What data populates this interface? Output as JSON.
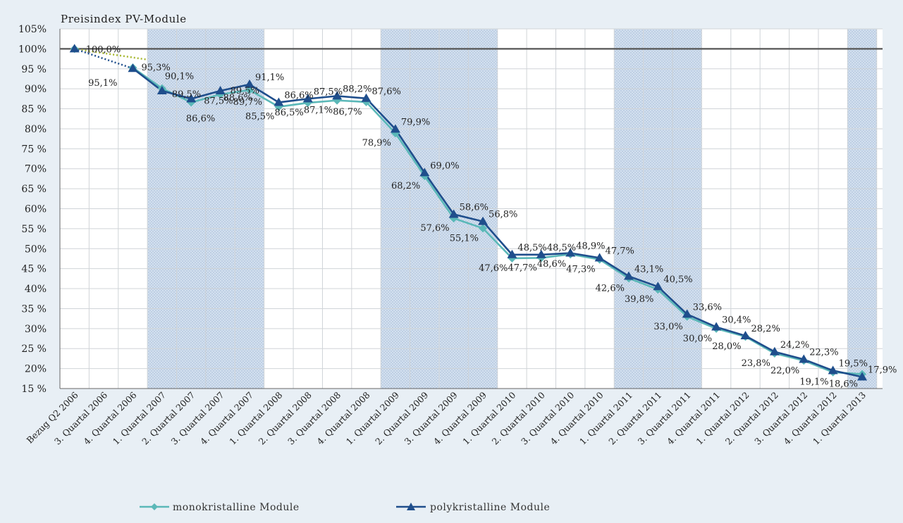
{
  "chart_data": {
    "type": "line",
    "title": "Preisindex PV-Module",
    "categories": [
      "Bezug Q2 2006",
      "3. Quartal 2006",
      "4. Quartal 2006",
      "1. Quartal 2007",
      "2. Quartal 2007",
      "3. Quartal 2007",
      "4. Quartal 2007",
      "1. Quartal 2008",
      "2. Quartal 2008",
      "3. Quartal 2008",
      "4. Quartal 2008",
      "1. Quartal 2009",
      "2. Quartal 2009",
      "3. Quartal 2009",
      "4. Quartal 2009",
      "1. Quartal 2010",
      "2. Quartal 2010",
      "3. Quartal 2010",
      "4. Quartal 2010",
      "1. Quartal 2011",
      "2. Quartal 2011",
      "3. Quartal 2011",
      "4. Quartal 2011",
      "1. Quartal 2012",
      "2. Quartal 2012",
      "3. Quartal 2012",
      "4. Quartal 2012",
      "1. Quartal 2013"
    ],
    "yticks": [
      "15 %",
      "20%",
      "25 %",
      "30%",
      "35 %",
      "40%",
      "45 %",
      "50%",
      "55 %",
      "60%",
      "65 %",
      "70%",
      "75 %",
      "80%",
      "85 %",
      "90%",
      "95 %",
      "100%",
      "105%"
    ],
    "ylim": [
      15,
      105
    ],
    "reference_line": 100,
    "shaded_bands": [
      [
        3,
        6
      ],
      [
        11,
        14
      ],
      [
        19,
        21
      ],
      [
        27,
        27
      ]
    ],
    "series": [
      {
        "name": "monokristalline Module",
        "color": "#5bb8b8",
        "marker": "diamond",
        "values": [
          100,
          null,
          95.3,
          90.1,
          86.6,
          88.6,
          89.7,
          85.5,
          86.5,
          87.1,
          86.7,
          78.9,
          68.2,
          57.6,
          55.1,
          47.6,
          47.7,
          48.6,
          47.3,
          42.6,
          39.8,
          33.0,
          30.0,
          28.0,
          23.8,
          22.0,
          19.1,
          18.6
        ],
        "labels": [
          "100,0%",
          "",
          "95,3%",
          "90,1%",
          "86,6%",
          "88,6%",
          "89,7%",
          "85,5%",
          "86,5%",
          "87,1%",
          "86,7%",
          "78,9%",
          "68,2%",
          "57,6%",
          "55,1%",
          "47,6%",
          "47,7%",
          "48,6%",
          "47,3%",
          "42,6%",
          "39,8%",
          "33,0%",
          "30,0%",
          "28,0%",
          "23,8%",
          "22,0%",
          "19,1%",
          "18,6%"
        ]
      },
      {
        "name": "polykristalline Module",
        "color": "#1f4e8c",
        "marker": "triangle",
        "values": [
          100,
          null,
          95.1,
          89.5,
          87.5,
          89.5,
          91.1,
          86.6,
          87.5,
          88.2,
          87.6,
          79.9,
          69.0,
          58.6,
          56.8,
          48.5,
          48.5,
          48.9,
          47.7,
          43.1,
          40.5,
          33.6,
          30.4,
          28.2,
          24.2,
          22.3,
          19.5,
          17.9
        ],
        "labels": [
          "",
          "",
          "95,1%",
          "89,5%",
          "87,5%",
          "89,5%",
          "91,1%",
          "86,6%",
          "87,5%",
          "88,2%",
          "87,6%",
          "79,9%",
          "69,0%",
          "58,6%",
          "56,8%",
          "48,5%",
          "48,5%",
          "48,9%",
          "47,7%",
          "43,1%",
          "40,5%",
          "33,6%",
          "30,4%",
          "28,2%",
          "24,2%",
          "22,3%",
          "19,5%",
          "17,9%"
        ]
      }
    ],
    "legend": "bottom",
    "grid": true
  },
  "colors": {
    "shade": "#cddced",
    "shade_dots": "#9fb6d3",
    "trend_dotted": "#a8b832"
  }
}
